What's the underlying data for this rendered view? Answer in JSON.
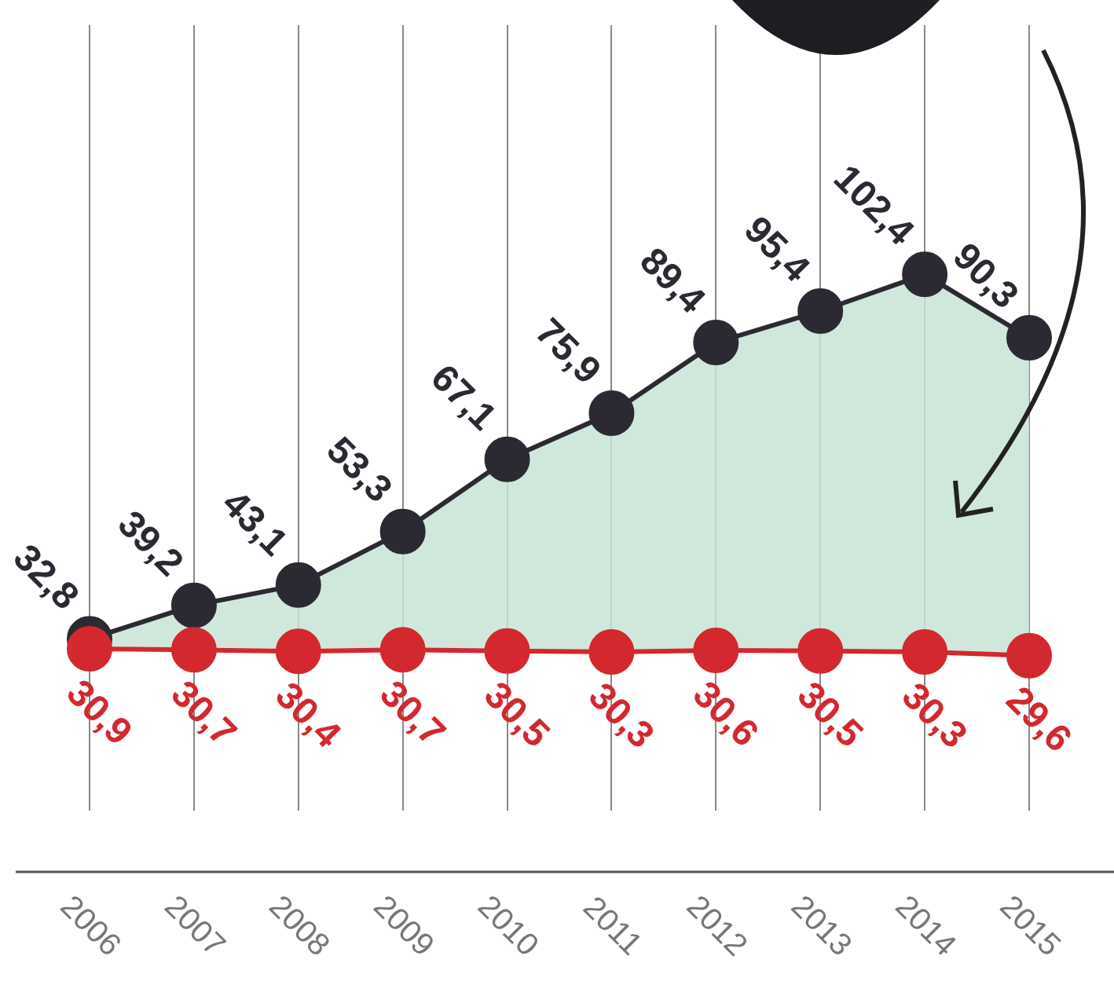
{
  "chart_data": {
    "type": "line",
    "categories": [
      "2006",
      "2007",
      "2008",
      "2009",
      "2010",
      "2011",
      "2012",
      "2013",
      "2014",
      "2015"
    ],
    "series": [
      {
        "type": "area",
        "color": "#2b2a33",
        "values": [
          32.8,
          39.2,
          43.1,
          53.3,
          67.1,
          75.9,
          89.4,
          95.4,
          102.4,
          90.3
        ],
        "value_labels": [
          "32,8",
          "39,2",
          "43,1",
          "53,3",
          "67,1",
          "75,9",
          "89,4",
          "95,4",
          "102,4",
          "90,3"
        ]
      },
      {
        "type": "line",
        "color": "#d3282e",
        "values": [
          30.9,
          30.7,
          30.4,
          30.7,
          30.5,
          30.3,
          30.6,
          30.5,
          30.3,
          29.6
        ],
        "value_labels": [
          "30,9",
          "30,7",
          "30,4",
          "30,7",
          "30,5",
          "30,3",
          "30,6",
          "30,5",
          "30,3",
          "29,6"
        ]
      }
    ],
    "ylim": [
      0,
      150
    ],
    "tick_labels": "x",
    "grid": "x",
    "legend": false,
    "marker": "circle",
    "line_style": "solid"
  }
}
